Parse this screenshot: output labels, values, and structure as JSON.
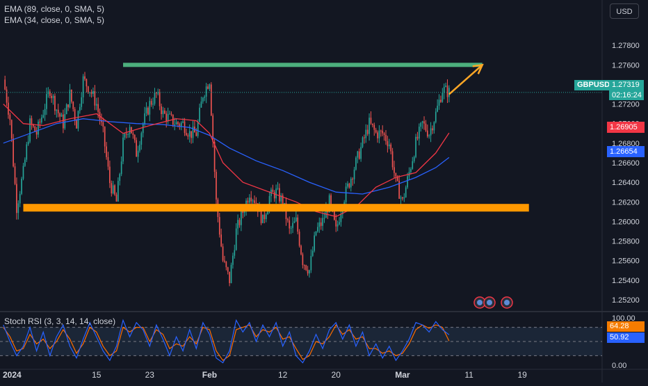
{
  "toolbar": {
    "currency": "USD"
  },
  "indicators": {
    "ema1": "EMA (89, close, 0, SMA, 5)",
    "ema2": "EMA (34, close, 0, SMA, 5)",
    "stoch": "Stoch RSI (3, 3, 14, 14, close)"
  },
  "price_tags": {
    "symbol": "GBPUSD",
    "last": "1.27319",
    "countdown": "02:16:24",
    "ema34": "1.26905",
    "ema89": "1.26654",
    "stoch_k": "64.28",
    "stoch_d": "50.92"
  },
  "colors": {
    "background": "#131722",
    "up": "#26a69a",
    "down": "#ef5350",
    "ema34": "#f23645",
    "ema89": "#2962ff",
    "resistance": "#4caf7d",
    "support": "#ff9800",
    "arrow": "#ffa726",
    "stoch_k": "#2962ff",
    "stoch_d": "#ff6d00"
  },
  "chart_data": [
    {
      "type": "candlestick",
      "symbol": "GBPUSD",
      "y_ticks": [
        "1.27800",
        "1.27600",
        "1.27400",
        "1.27200",
        "1.27000",
        "1.26800",
        "1.26600",
        "1.26400",
        "1.26200",
        "1.26000",
        "1.25800",
        "1.25600",
        "1.25400",
        "1.25200"
      ],
      "ylim": [
        1.251,
        1.2805
      ],
      "x_ticks": [
        {
          "label": "2024",
          "day": 0
        },
        {
          "label": "15",
          "day": 14
        },
        {
          "label": "23",
          "day": 22
        },
        {
          "label": "Feb",
          "day": 31
        },
        {
          "label": "12",
          "day": 42
        },
        {
          "label": "20",
          "day": 50
        },
        {
          "label": "Mar",
          "day": 60
        },
        {
          "label": "11",
          "day": 70
        },
        {
          "label": "19",
          "day": 78
        }
      ],
      "xlim": [
        -0.5,
        90
      ],
      "close_path": [
        [
          0,
          1.2745
        ],
        [
          1,
          1.2705
        ],
        [
          2,
          1.2615
        ],
        [
          3,
          1.265
        ],
        [
          4,
          1.27
        ],
        [
          5,
          1.269
        ],
        [
          7,
          1.2735
        ],
        [
          8,
          1.2715
        ],
        [
          9,
          1.27
        ],
        [
          10,
          1.273
        ],
        [
          11,
          1.27
        ],
        [
          12,
          1.2745
        ],
        [
          13,
          1.2735
        ],
        [
          14,
          1.272
        ],
        [
          15,
          1.269
        ],
        [
          16,
          1.264
        ],
        [
          17,
          1.262
        ],
        [
          18,
          1.268
        ],
        [
          19,
          1.27
        ],
        [
          20,
          1.267
        ],
        [
          21,
          1.27
        ],
        [
          22,
          1.272
        ],
        [
          23,
          1.273
        ],
        [
          24,
          1.271
        ],
        [
          25,
          1.2705
        ],
        [
          26,
          1.27
        ],
        [
          27,
          1.27
        ],
        [
          28,
          1.269
        ],
        [
          29,
          1.269
        ],
        [
          30,
          1.273
        ],
        [
          31,
          1.2745
        ],
        [
          32,
          1.262
        ],
        [
          33,
          1.256
        ],
        [
          34,
          1.254
        ],
        [
          35,
          1.259
        ],
        [
          36,
          1.261
        ],
        [
          37,
          1.263
        ],
        [
          38,
          1.262
        ],
        [
          39,
          1.26
        ],
        [
          40,
          1.2625
        ],
        [
          41,
          1.263
        ],
        [
          42,
          1.262
        ],
        [
          43,
          1.259
        ],
        [
          44,
          1.26
        ],
        [
          45,
          1.256
        ],
        [
          46,
          1.255
        ],
        [
          47,
          1.259
        ],
        [
          48,
          1.26
        ],
        [
          49,
          1.262
        ],
        [
          50,
          1.259
        ],
        [
          51,
          1.262
        ],
        [
          52,
          1.264
        ],
        [
          53,
          1.266
        ],
        [
          54,
          1.268
        ],
        [
          55,
          1.27
        ],
        [
          56,
          1.269
        ],
        [
          57,
          1.269
        ],
        [
          58,
          1.268
        ],
        [
          59,
          1.264
        ],
        [
          60,
          1.262
        ],
        [
          61,
          1.265
        ],
        [
          62,
          1.268
        ],
        [
          63,
          1.27
        ],
        [
          64,
          1.269
        ],
        [
          65,
          1.271
        ],
        [
          66,
          1.2735
        ],
        [
          67,
          1.2732
        ]
      ],
      "ema34": [
        [
          0,
          1.272
        ],
        [
          3,
          1.27
        ],
        [
          6,
          1.2698
        ],
        [
          10,
          1.2705
        ],
        [
          14,
          1.271
        ],
        [
          18,
          1.269
        ],
        [
          22,
          1.2698
        ],
        [
          26,
          1.2705
        ],
        [
          29,
          1.2703
        ],
        [
          31,
          1.269
        ],
        [
          33,
          1.266
        ],
        [
          36,
          1.264
        ],
        [
          40,
          1.263
        ],
        [
          44,
          1.262
        ],
        [
          47,
          1.261
        ],
        [
          50,
          1.2605
        ],
        [
          53,
          1.2615
        ],
        [
          56,
          1.2635
        ],
        [
          59,
          1.2645
        ],
        [
          62,
          1.265
        ],
        [
          65,
          1.267
        ],
        [
          67,
          1.26905
        ]
      ],
      "ema89": [
        [
          0,
          1.268
        ],
        [
          4,
          1.269
        ],
        [
          8,
          1.27
        ],
        [
          12,
          1.2705
        ],
        [
          16,
          1.2702
        ],
        [
          20,
          1.27
        ],
        [
          24,
          1.2699
        ],
        [
          28,
          1.2696
        ],
        [
          31,
          1.2688
        ],
        [
          34,
          1.2675
        ],
        [
          38,
          1.2662
        ],
        [
          42,
          1.2652
        ],
        [
          46,
          1.264
        ],
        [
          50,
          1.263
        ],
        [
          54,
          1.2628
        ],
        [
          58,
          1.2635
        ],
        [
          62,
          1.2645
        ],
        [
          65,
          1.2655
        ],
        [
          67,
          1.26654
        ]
      ],
      "levels": [
        {
          "name": "resistance",
          "price": 1.276,
          "from_day": 18,
          "to_day": 72
        },
        {
          "name": "support",
          "price": 1.2614,
          "from_day": 3,
          "to_day": 79
        }
      ],
      "arrow": {
        "from": [
          67,
          1.273
        ],
        "to": [
          72,
          1.276
        ]
      }
    },
    {
      "type": "line",
      "title": "Stoch RSI (3, 3, 14, 14, close)",
      "y_ticks": [
        "100.00",
        "0.00"
      ],
      "ylim": [
        0,
        100
      ],
      "bands": [
        80,
        50,
        20
      ],
      "k_path": [
        [
          0,
          85
        ],
        [
          1,
          50
        ],
        [
          2,
          20
        ],
        [
          3,
          40
        ],
        [
          4,
          80
        ],
        [
          5,
          30
        ],
        [
          6,
          70
        ],
        [
          7,
          20
        ],
        [
          8,
          60
        ],
        [
          9,
          85
        ],
        [
          10,
          40
        ],
        [
          11,
          15
        ],
        [
          12,
          55
        ],
        [
          13,
          90
        ],
        [
          14,
          60
        ],
        [
          15,
          30
        ],
        [
          16,
          10
        ],
        [
          17,
          40
        ],
        [
          18,
          95
        ],
        [
          19,
          60
        ],
        [
          20,
          90
        ],
        [
          21,
          75
        ],
        [
          22,
          40
        ],
        [
          23,
          85
        ],
        [
          24,
          55
        ],
        [
          25,
          20
        ],
        [
          26,
          60
        ],
        [
          27,
          30
        ],
        [
          28,
          75
        ],
        [
          29,
          35
        ],
        [
          30,
          90
        ],
        [
          31,
          65
        ],
        [
          32,
          15
        ],
        [
          33,
          5
        ],
        [
          34,
          30
        ],
        [
          35,
          95
        ],
        [
          36,
          70
        ],
        [
          37,
          90
        ],
        [
          38,
          50
        ],
        [
          39,
          85
        ],
        [
          40,
          60
        ],
        [
          41,
          90
        ],
        [
          42,
          40
        ],
        [
          43,
          70
        ],
        [
          44,
          20
        ],
        [
          45,
          5
        ],
        [
          46,
          30
        ],
        [
          47,
          65
        ],
        [
          48,
          35
        ],
        [
          49,
          75
        ],
        [
          50,
          90
        ],
        [
          51,
          55
        ],
        [
          52,
          85
        ],
        [
          53,
          40
        ],
        [
          54,
          70
        ],
        [
          55,
          20
        ],
        [
          56,
          45
        ],
        [
          57,
          15
        ],
        [
          58,
          40
        ],
        [
          59,
          10
        ],
        [
          60,
          30
        ],
        [
          61,
          55
        ],
        [
          62,
          90
        ],
        [
          63,
          85
        ],
        [
          64,
          70
        ],
        [
          65,
          92
        ],
        [
          66,
          75
        ],
        [
          67,
          64.28
        ]
      ],
      "d_path": [
        [
          0,
          80
        ],
        [
          1,
          60
        ],
        [
          2,
          30
        ],
        [
          3,
          35
        ],
        [
          4,
          65
        ],
        [
          5,
          45
        ],
        [
          6,
          55
        ],
        [
          7,
          35
        ],
        [
          8,
          50
        ],
        [
          9,
          75
        ],
        [
          10,
          55
        ],
        [
          11,
          25
        ],
        [
          12,
          45
        ],
        [
          13,
          80
        ],
        [
          14,
          70
        ],
        [
          15,
          40
        ],
        [
          16,
          20
        ],
        [
          17,
          30
        ],
        [
          18,
          80
        ],
        [
          19,
          70
        ],
        [
          20,
          80
        ],
        [
          21,
          80
        ],
        [
          22,
          50
        ],
        [
          23,
          75
        ],
        [
          24,
          65
        ],
        [
          25,
          35
        ],
        [
          26,
          45
        ],
        [
          27,
          40
        ],
        [
          28,
          60
        ],
        [
          29,
          45
        ],
        [
          30,
          80
        ],
        [
          31,
          75
        ],
        [
          32,
          30
        ],
        [
          33,
          10
        ],
        [
          34,
          20
        ],
        [
          35,
          75
        ],
        [
          36,
          80
        ],
        [
          37,
          85
        ],
        [
          38,
          60
        ],
        [
          39,
          75
        ],
        [
          40,
          70
        ],
        [
          41,
          80
        ],
        [
          42,
          55
        ],
        [
          43,
          60
        ],
        [
          44,
          35
        ],
        [
          45,
          12
        ],
        [
          46,
          20
        ],
        [
          47,
          50
        ],
        [
          48,
          45
        ],
        [
          49,
          60
        ],
        [
          50,
          85
        ],
        [
          51,
          65
        ],
        [
          52,
          75
        ],
        [
          53,
          55
        ],
        [
          54,
          60
        ],
        [
          55,
          35
        ],
        [
          56,
          35
        ],
        [
          57,
          25
        ],
        [
          58,
          30
        ],
        [
          59,
          20
        ],
        [
          60,
          25
        ],
        [
          61,
          45
        ],
        [
          62,
          75
        ],
        [
          63,
          85
        ],
        [
          64,
          78
        ],
        [
          65,
          85
        ],
        [
          66,
          80
        ],
        [
          67,
          50.92
        ]
      ]
    }
  ]
}
